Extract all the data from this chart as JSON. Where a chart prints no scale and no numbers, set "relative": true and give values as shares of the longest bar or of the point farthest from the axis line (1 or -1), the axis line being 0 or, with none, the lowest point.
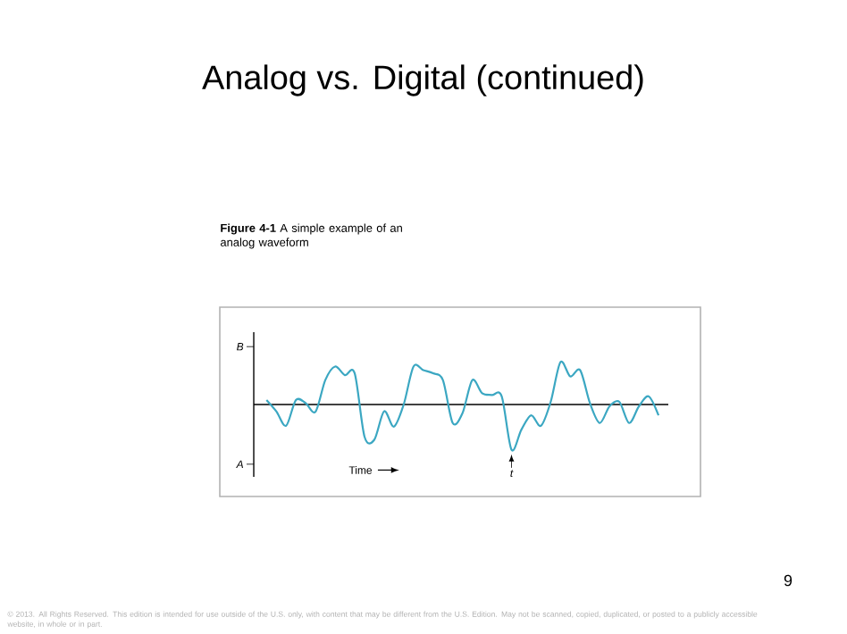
{
  "chart_data": {
    "type": "line",
    "relative": true,
    "title": "Analog vs. Digital (continued)",
    "subtitle": "**Figure 4-1** A simple example of an analog waveform",
    "xlabel": "Time",
    "annotations": [
      "B",
      "A",
      "t",
      "9",
      "© 2013. All Rights Reserved. This edition is intended for use outside of the U.S. only, with content that may be different from the U.S. Edition. May not be scanned, copied, duplicated, or posted to a publicly accessible website, in whole or in part."
    ],
    "categories": [
      null,
      null,
      null,
      null,
      null,
      null,
      null,
      null,
      null,
      null,
      null,
      null,
      null,
      null,
      null,
      null,
      null,
      null,
      null,
      null,
      null,
      null,
      null,
      null,
      null,
      null,
      null,
      null,
      null,
      null,
      null,
      null,
      null,
      null,
      null,
      null,
      null,
      null,
      null,
      null,
      null
    ],
    "color": "#3ba7c2",
    "values": [
      0.1,
      -0.15,
      -0.47,
      0.1,
      0.03,
      -0.16,
      0.54,
      0.84,
      0.65,
      0.69,
      -0.71,
      -0.78,
      -0.15,
      -0.49,
      0.0,
      0.84,
      0.76,
      0.69,
      0.54,
      -0.41,
      -0.19,
      0.54,
      0.25,
      0.21,
      0.18,
      -1.0,
      -0.56,
      -0.24,
      -0.47,
      0.06,
      0.94,
      0.62,
      0.76,
      0.03,
      -0.41,
      -0.04,
      0.06,
      -0.41,
      -0.04,
      0.18,
      -0.24
    ]
  }
}
